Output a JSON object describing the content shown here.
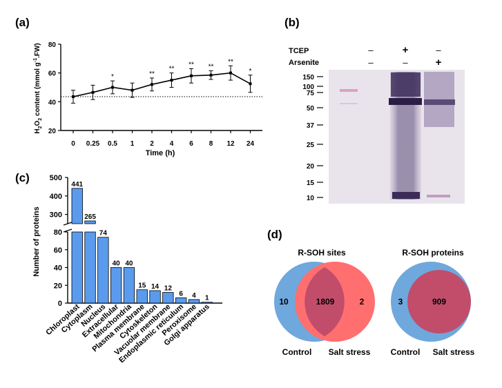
{
  "figure": {
    "panel_a": {
      "label": "(a)"
    },
    "panel_b": {
      "label": "(b)"
    },
    "panel_c": {
      "label": "(c)"
    },
    "panel_d": {
      "label": "(d)"
    }
  },
  "chart_data": [
    {
      "panel": "a",
      "type": "line",
      "xlabel": "Time (h)",
      "ylabel": "H2O2 content (mmol g-1 FW)",
      "ylabel_parts": {
        "pre": "H",
        "sub1": "2",
        "mid": "O",
        "sub2": "2",
        "post": " content (mmol g",
        "sup": "-1",
        "end": ".FW)"
      },
      "categories": [
        "0",
        "0.25",
        "0.5",
        "1",
        "2",
        "4",
        "6",
        "8",
        "12",
        "24"
      ],
      "values": [
        43.5,
        46.5,
        50,
        48,
        52,
        55,
        58,
        58.5,
        60,
        52.5
      ],
      "errors": [
        4.5,
        5,
        4.5,
        5,
        4.5,
        5,
        5,
        3,
        5,
        6
      ],
      "significance": [
        "",
        "",
        "*",
        "",
        "**",
        "**",
        "**",
        "**",
        "**",
        "*"
      ],
      "baseline": 43.5,
      "ylim": [
        20,
        80
      ],
      "yticks": [
        20,
        40,
        60,
        80
      ]
    },
    {
      "panel": "c",
      "type": "bar",
      "ylabel": "Number of proteins",
      "categories": [
        "Chloroplast",
        "Cytoplasm",
        "Nucleus",
        "Extracellular",
        "Mitochondria",
        "Plasma membrane",
        "Cytoskeleton",
        "Vacuolar membrane",
        "Endoplasmic reticulum",
        "Peroxisome",
        "Golgi apparatus"
      ],
      "values": [
        441,
        265,
        74,
        40,
        40,
        15,
        14,
        12,
        6,
        4,
        1
      ],
      "axis_break": [
        80,
        250
      ],
      "yticks_lower": [
        0,
        20,
        40,
        60,
        80
      ],
      "yticks_upper": [
        300,
        400,
        500
      ],
      "colors": {
        "bar": "#5b9bed"
      }
    }
  ],
  "western_blot": {
    "rows": [
      {
        "label": "TCEP",
        "marks": [
          "–",
          "+",
          "–"
        ]
      },
      {
        "label": "Arsenite",
        "marks": [
          "–",
          "–",
          "+"
        ]
      }
    ],
    "markers": [
      "150",
      "100",
      "75",
      "50",
      "37",
      "25",
      "20",
      "15",
      "10"
    ]
  },
  "venn": [
    {
      "title": "R-SOH sites",
      "left_only": "10",
      "overlap": "1809",
      "right_only": "2",
      "left_label": "Control",
      "right_label": "Salt stress"
    },
    {
      "title": "R-SOH proteins",
      "left_only": "3",
      "overlap": "909",
      "left_label": "Control",
      "right_label": "Salt stress"
    }
  ],
  "colors": {
    "control": "#6fa8dc",
    "salt": "#ff6f6f",
    "overlap": "#c14d6b",
    "bar": "#5b9bed"
  }
}
